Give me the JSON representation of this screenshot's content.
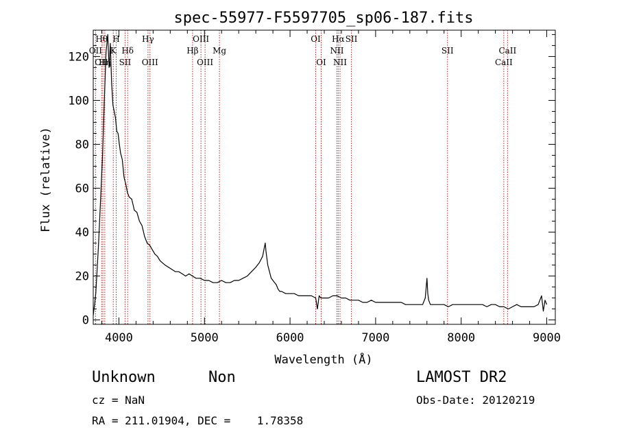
{
  "title": "spec-55977-F5597705_sp06-187.fits",
  "footer": {
    "class_label": "Unknown",
    "subclass_label": "Non",
    "survey": "LAMOST DR2",
    "redshift": "cz = NaN",
    "obs_date": "Obs-Date: 20120219",
    "coords": "RA = 211.01904, DEC =    1.78358"
  },
  "chart_data": {
    "type": "line",
    "xlabel": "Wavelength (Å)",
    "ylabel": "Flux (relative)",
    "xlim": [
      3700,
      9100
    ],
    "ylim": [
      -2,
      132
    ],
    "x_ticks": [
      4000,
      5000,
      6000,
      7000,
      8000,
      9000
    ],
    "y_ticks": [
      0,
      20,
      40,
      60,
      80,
      100,
      120
    ],
    "grid": false,
    "series": [
      {
        "color": "#000000",
        "x": [
          3700,
          3730,
          3760,
          3790,
          3810,
          3830,
          3850,
          3870,
          3885,
          3900,
          3915,
          3930,
          3945,
          3960,
          3975,
          3990,
          4005,
          4020,
          4040,
          4060,
          4080,
          4100,
          4120,
          4150,
          4180,
          4210,
          4240,
          4270,
          4300,
          4330,
          4360,
          4390,
          4420,
          4450,
          4480,
          4510,
          4540,
          4580,
          4620,
          4660,
          4700,
          4740,
          4780,
          4820,
          4860,
          4900,
          4950,
          5000,
          5050,
          5100,
          5150,
          5200,
          5250,
          5300,
          5350,
          5400,
          5450,
          5500,
          5550,
          5600,
          5640,
          5680,
          5700,
          5710,
          5720,
          5740,
          5760,
          5780,
          5800,
          5820,
          5840,
          5860,
          5880,
          5900,
          5950,
          6000,
          6050,
          6100,
          6150,
          6200,
          6250,
          6300,
          6320,
          6340,
          6360,
          6400,
          6450,
          6500,
          6550,
          6600,
          6650,
          6700,
          6750,
          6800,
          6850,
          6900,
          6950,
          7000,
          7050,
          7100,
          7150,
          7200,
          7250,
          7300,
          7350,
          7400,
          7450,
          7500,
          7550,
          7580,
          7600,
          7610,
          7620,
          7640,
          7680,
          7720,
          7760,
          7800,
          7850,
          7900,
          7950,
          8000,
          8050,
          8100,
          8150,
          8200,
          8250,
          8300,
          8350,
          8400,
          8450,
          8500,
          8550,
          8600,
          8650,
          8700,
          8750,
          8800,
          8850,
          8900,
          8940,
          8960,
          8980,
          9000
        ],
        "values": [
          2,
          12,
          33,
          58,
          76,
          100,
          122,
          130,
          115,
          126,
          108,
          98,
          95,
          92,
          86,
          85,
          80,
          76,
          73,
          65,
          62,
          58,
          56,
          55,
          50,
          49,
          45,
          43,
          38,
          35,
          34,
          32,
          30,
          29,
          27,
          26,
          25,
          24,
          23,
          22,
          22,
          21,
          20,
          21,
          20,
          19,
          19,
          18,
          18,
          17,
          17,
          18,
          17,
          17,
          18,
          18,
          19,
          20,
          22,
          24,
          26,
          29,
          33,
          35,
          31,
          25,
          22,
          19,
          18,
          17,
          16,
          14,
          13,
          13,
          12,
          12,
          12,
          11,
          11,
          11,
          11,
          10,
          5,
          11,
          10,
          10,
          10,
          11,
          11,
          10,
          10,
          9,
          9,
          9,
          8,
          8,
          9,
          8,
          8,
          8,
          8,
          8,
          8,
          8,
          7,
          7,
          7,
          7,
          7,
          10,
          19,
          12,
          9,
          7,
          7,
          7,
          7,
          7,
          6,
          7,
          7,
          7,
          7,
          7,
          7,
          7,
          7,
          6,
          7,
          7,
          6,
          6,
          5,
          6,
          7,
          6,
          6,
          6,
          6,
          7,
          11,
          4,
          9,
          7
        ]
      }
    ],
    "annotations": [
      {
        "label": "OII",
        "x": 3727,
        "row": 2
      },
      {
        "label": "Hθ",
        "x": 3798,
        "row": 1
      },
      {
        "label": "OIII",
        "x": 3813,
        "row": 3
      },
      {
        "label": "Hη",
        "x": 3835,
        "row": 3
      },
      {
        "label": "K",
        "x": 3934,
        "row": 2
      },
      {
        "label": "H",
        "x": 3968,
        "row": 1
      },
      {
        "label": "SII",
        "x": 4072,
        "row": 3
      },
      {
        "label": "Hδ",
        "x": 4102,
        "row": 2
      },
      {
        "label": "Hγ",
        "x": 4340,
        "row": 1
      },
      {
        "label": "OIII",
        "x": 4363,
        "row": 3
      },
      {
        "label": "Hβ",
        "x": 4861,
        "row": 2
      },
      {
        "label": "OIII",
        "x": 4959,
        "row": 1
      },
      {
        "label": "OIII",
        "x": 5007,
        "row": 3
      },
      {
        "label": "Mg",
        "x": 5175,
        "row": 2
      },
      {
        "label": "OI",
        "x": 6300,
        "row": 1
      },
      {
        "label": "OI",
        "x": 6364,
        "row": 3
      },
      {
        "label": "NII",
        "x": 6548,
        "row": 2
      },
      {
        "label": "Hα",
        "x": 6563,
        "row": 1
      },
      {
        "label": "NII",
        "x": 6584,
        "row": 3
      },
      {
        "label": "SII",
        "x": 6717,
        "row": 1
      },
      {
        "label": "SII",
        "x": 7840,
        "row": 2
      },
      {
        "label": "CaII",
        "x": 8498,
        "row": 3
      },
      {
        "label": "CaII",
        "x": 8542,
        "row": 2
      }
    ],
    "line_color": "#b22222"
  }
}
